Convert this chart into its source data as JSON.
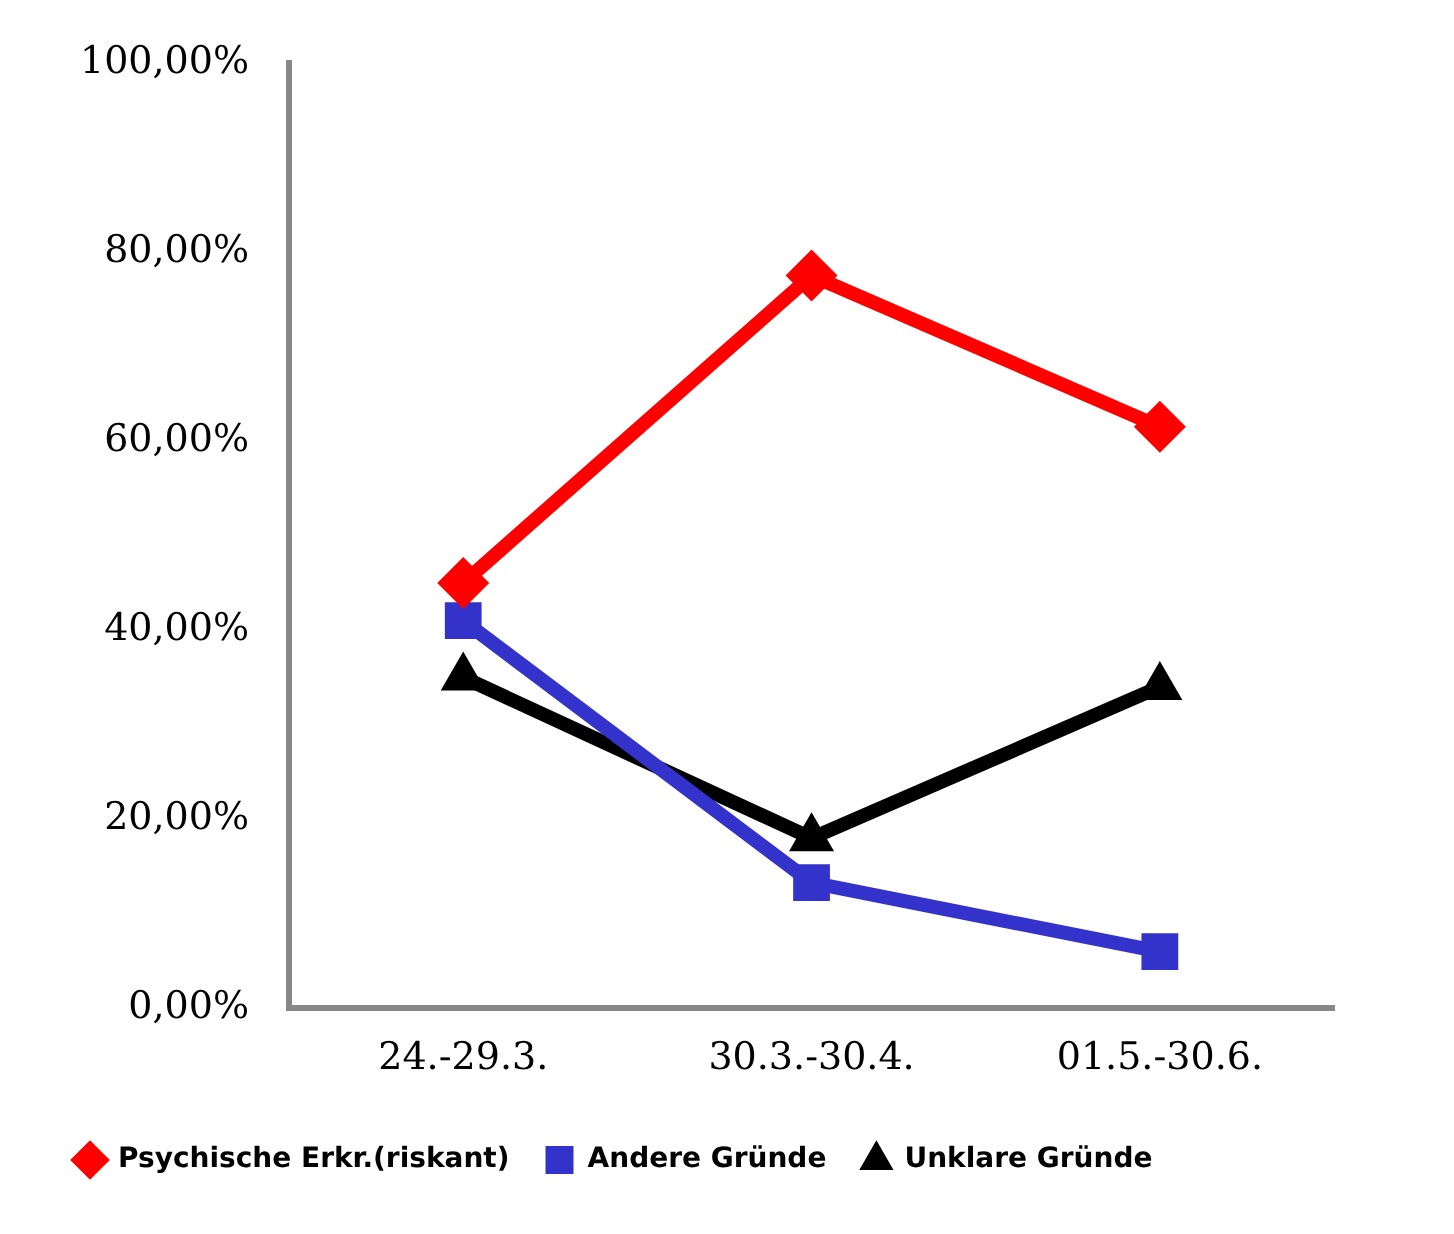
{
  "chart_data": {
    "type": "line",
    "categories": [
      "24.-29.3.",
      "30.3.-30.4.",
      "01.5.-30.6."
    ],
    "series": [
      {
        "name": "Psychische Erkr.(riskant)",
        "color": "#ff0000",
        "marker": "diamond",
        "values": [
          45,
          77.5,
          61.5
        ]
      },
      {
        "name": "Andere Gründe",
        "color": "#3333cc",
        "marker": "square",
        "values": [
          41,
          13.3,
          6
        ]
      },
      {
        "name": "Unklare Gründe",
        "color": "#000000",
        "marker": "triangle",
        "values": [
          35,
          18,
          34
        ]
      }
    ],
    "ylim": [
      0,
      100
    ],
    "yticks": [
      {
        "value": 0,
        "label": "0,00%"
      },
      {
        "value": 20,
        "label": "20,00%"
      },
      {
        "value": 40,
        "label": "40,00%"
      },
      {
        "value": 60,
        "label": "60,00%"
      },
      {
        "value": 80,
        "label": "80,00%"
      },
      {
        "value": 100,
        "label": "100,00%"
      }
    ],
    "grid": false,
    "legend": "bottom"
  }
}
